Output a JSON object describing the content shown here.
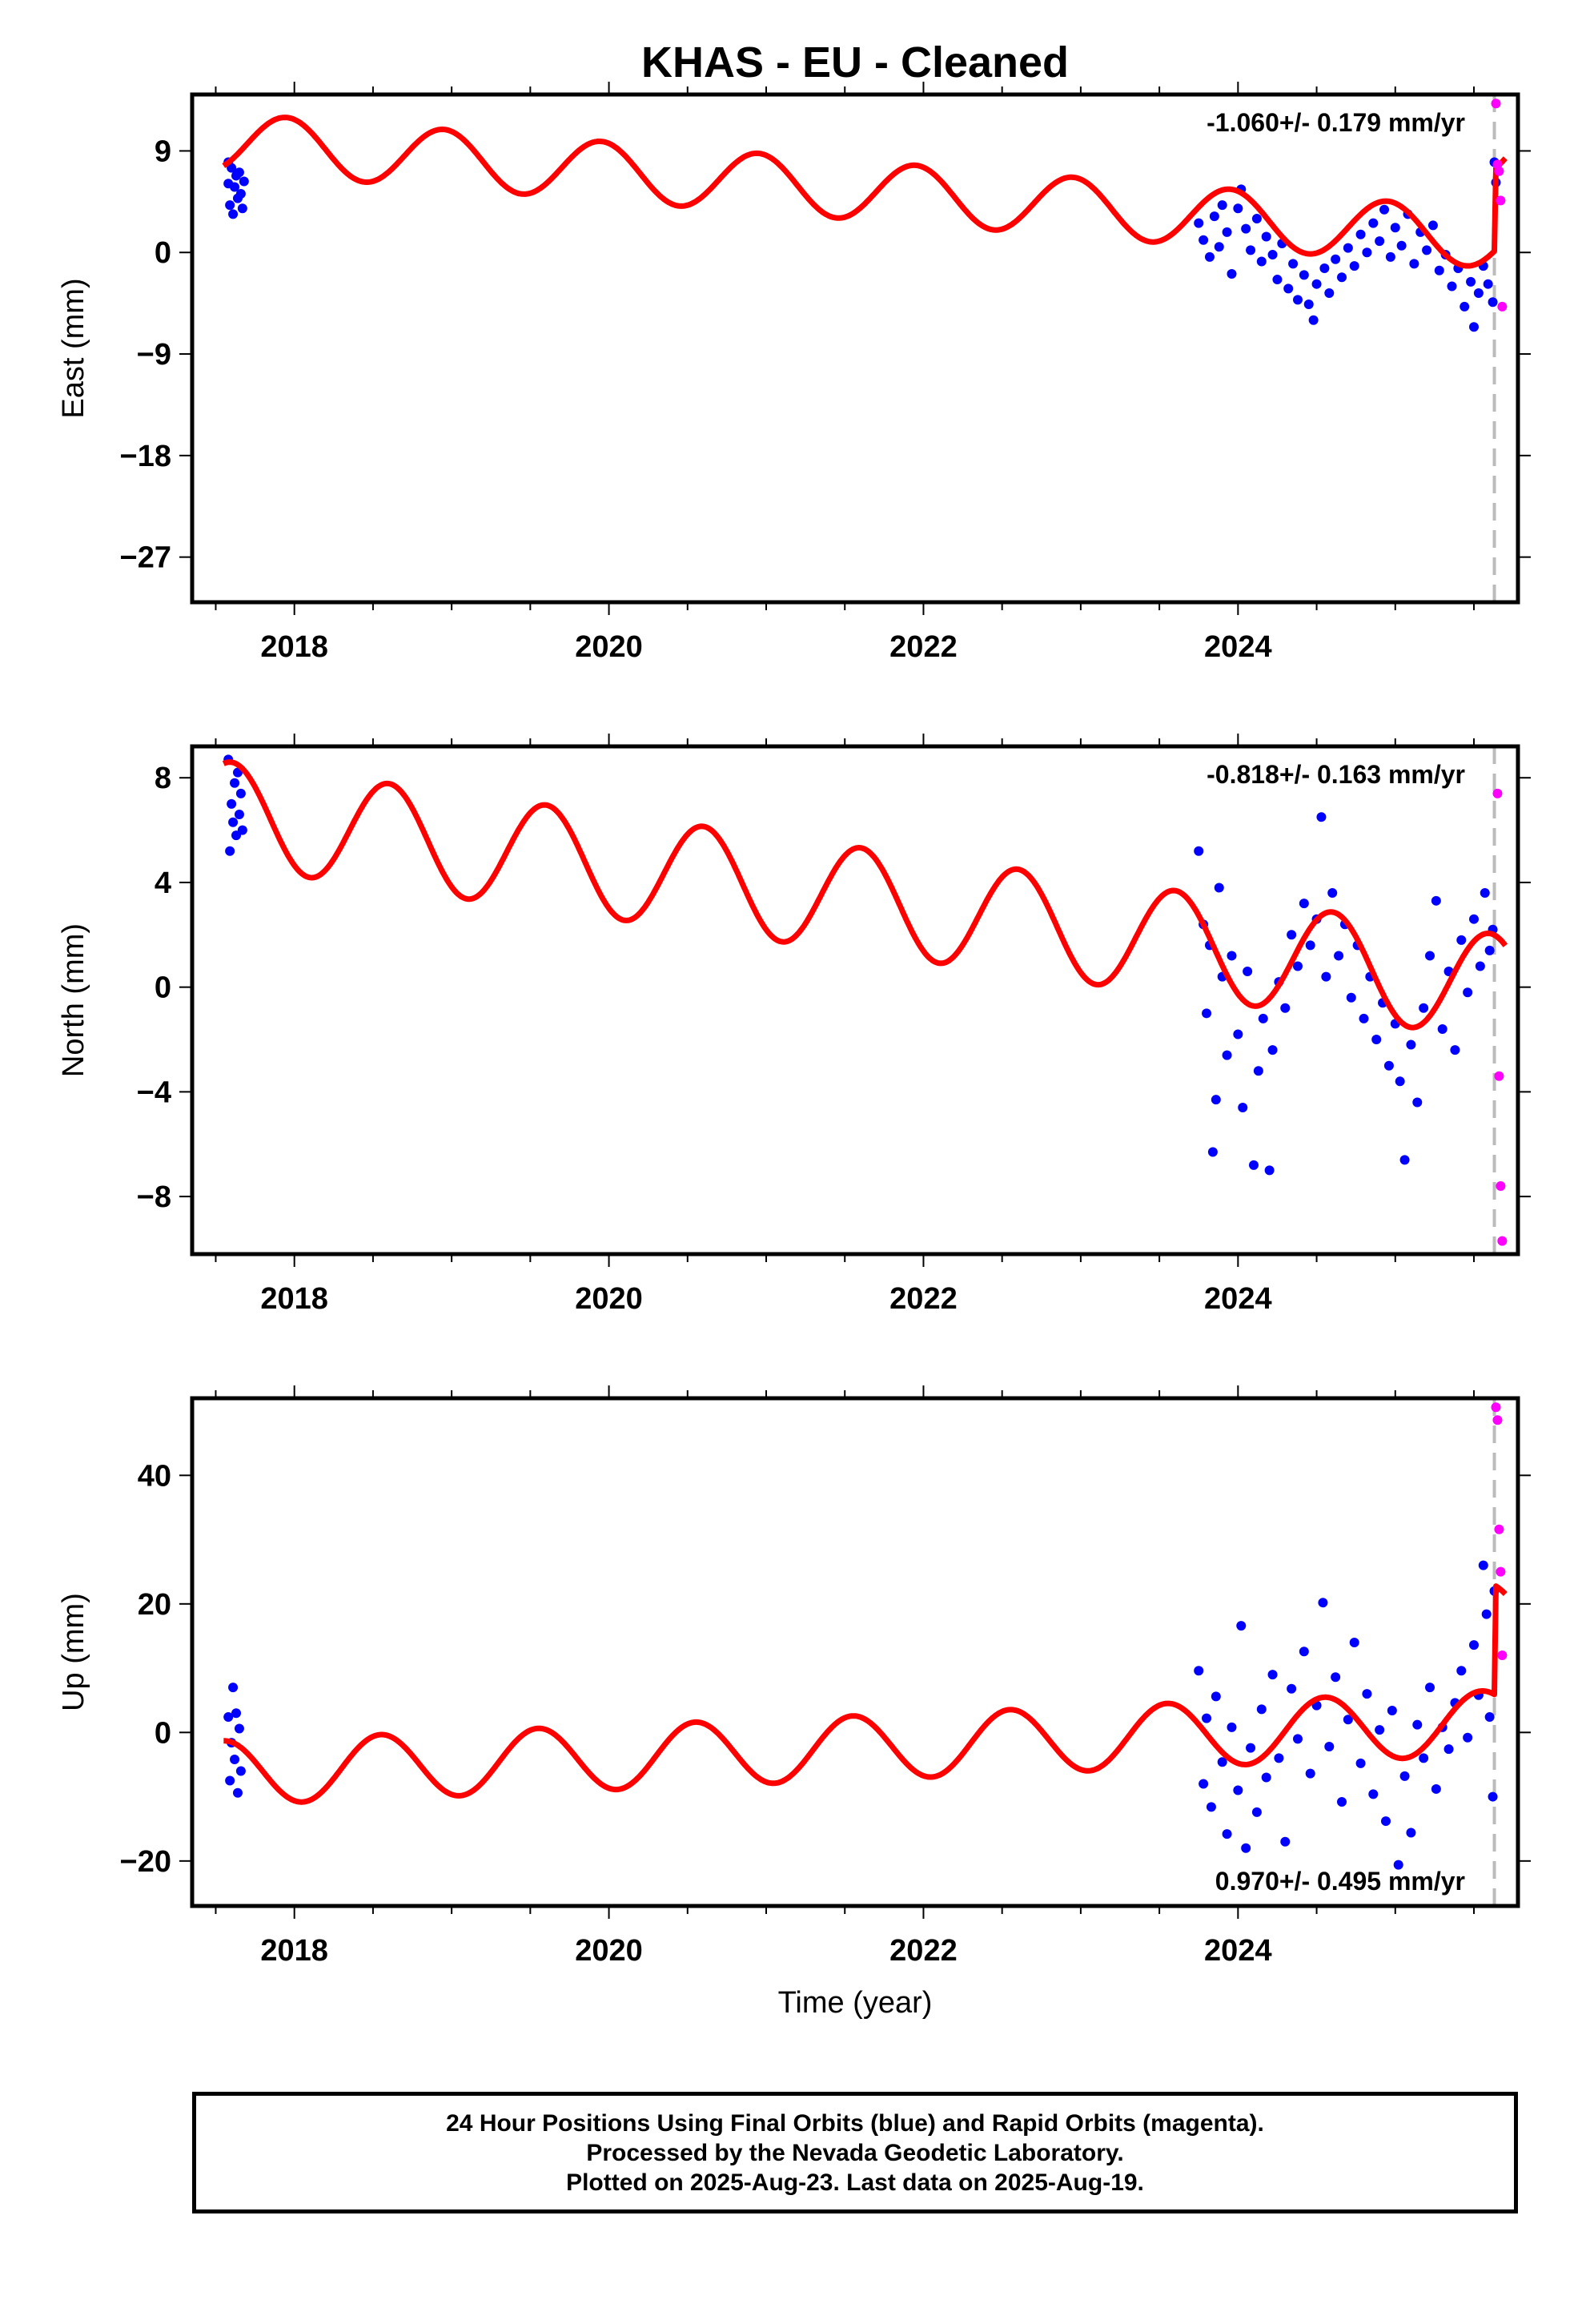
{
  "title": "KHAS  - EU - Cleaned",
  "xlabel": "Time (year)",
  "colors": {
    "final": "#0000ff",
    "rapid": "#ff00ff",
    "model": "#ff0000",
    "last_data": "#bbbbbb"
  },
  "footer": {
    "line1": "24 Hour Positions Using Final Orbits (blue) and Rapid Orbits (magenta).",
    "line2": "Processed by the Nevada Geodetic Laboratory.",
    "line3": "Plotted on 2025-Aug-23. Last data on 2025-Aug-19."
  },
  "chart_data": [
    {
      "type": "scatter",
      "ylabel": "East (mm)",
      "rate_label": "-1.060+/- 0.179 mm/yr",
      "rate_position": "top-right",
      "xlim": [
        2017.35,
        2025.78
      ],
      "ylim": [
        -31,
        14
      ],
      "xticks": [
        2018,
        2020,
        2022,
        2024
      ],
      "yticks": [
        9,
        0,
        -9,
        -18,
        -27
      ],
      "ytick_labels": [
        "9",
        "0",
        "−9",
        "−18",
        "−27"
      ],
      "last_data_year": 2025.63,
      "model": {
        "offset": 10.0,
        "trend": -1.06,
        "amplitude": 2.6,
        "phase_year": 2017.95,
        "annual_cycles": 1.0,
        "step_year": 2025.63,
        "step_mm": 7.2
      },
      "final_points": [
        {
          "x": 2017.58,
          "y": 6.1
        },
        {
          "x": 2017.58,
          "y": 8.0
        },
        {
          "x": 2017.59,
          "y": 4.2
        },
        {
          "x": 2017.6,
          "y": 7.5
        },
        {
          "x": 2017.61,
          "y": 3.4
        },
        {
          "x": 2017.62,
          "y": 5.8
        },
        {
          "x": 2017.63,
          "y": 6.8
        },
        {
          "x": 2017.64,
          "y": 4.8
        },
        {
          "x": 2017.65,
          "y": 7.1
        },
        {
          "x": 2017.66,
          "y": 5.2
        },
        {
          "x": 2017.67,
          "y": 3.9
        },
        {
          "x": 2017.68,
          "y": 6.3
        },
        {
          "x": 2023.75,
          "y": 2.6
        },
        {
          "x": 2023.78,
          "y": 1.1
        },
        {
          "x": 2023.82,
          "y": -0.4
        },
        {
          "x": 2023.85,
          "y": 3.2
        },
        {
          "x": 2023.88,
          "y": 0.5
        },
        {
          "x": 2023.9,
          "y": 4.2
        },
        {
          "x": 2023.93,
          "y": 1.8
        },
        {
          "x": 2023.96,
          "y": -1.9
        },
        {
          "x": 2024.0,
          "y": 3.9
        },
        {
          "x": 2024.02,
          "y": 5.6
        },
        {
          "x": 2024.05,
          "y": 2.1
        },
        {
          "x": 2024.08,
          "y": 0.2
        },
        {
          "x": 2024.12,
          "y": 3.0
        },
        {
          "x": 2024.15,
          "y": -0.8
        },
        {
          "x": 2024.18,
          "y": 1.4
        },
        {
          "x": 2024.22,
          "y": -0.2
        },
        {
          "x": 2024.25,
          "y": -2.4
        },
        {
          "x": 2024.28,
          "y": 0.8
        },
        {
          "x": 2024.32,
          "y": -3.2
        },
        {
          "x": 2024.35,
          "y": -1.0
        },
        {
          "x": 2024.38,
          "y": -4.2
        },
        {
          "x": 2024.42,
          "y": -2.0
        },
        {
          "x": 2024.45,
          "y": -4.6
        },
        {
          "x": 2024.48,
          "y": -6.0
        },
        {
          "x": 2024.5,
          "y": -2.8
        },
        {
          "x": 2024.55,
          "y": -1.4
        },
        {
          "x": 2024.58,
          "y": -3.6
        },
        {
          "x": 2024.62,
          "y": -0.6
        },
        {
          "x": 2024.66,
          "y": -2.2
        },
        {
          "x": 2024.7,
          "y": 0.4
        },
        {
          "x": 2024.74,
          "y": -1.2
        },
        {
          "x": 2024.78,
          "y": 1.6
        },
        {
          "x": 2024.82,
          "y": 0.0
        },
        {
          "x": 2024.86,
          "y": 2.6
        },
        {
          "x": 2024.9,
          "y": 1.0
        },
        {
          "x": 2024.93,
          "y": 3.8
        },
        {
          "x": 2024.97,
          "y": -0.4
        },
        {
          "x": 2025.0,
          "y": 2.2
        },
        {
          "x": 2025.04,
          "y": 0.6
        },
        {
          "x": 2025.08,
          "y": 3.4
        },
        {
          "x": 2025.12,
          "y": -1.0
        },
        {
          "x": 2025.16,
          "y": 1.8
        },
        {
          "x": 2025.2,
          "y": 0.2
        },
        {
          "x": 2025.24,
          "y": 2.4
        },
        {
          "x": 2025.28,
          "y": -1.6
        },
        {
          "x": 2025.32,
          "y": -0.2
        },
        {
          "x": 2025.36,
          "y": -3.0
        },
        {
          "x": 2025.4,
          "y": -1.4
        },
        {
          "x": 2025.44,
          "y": -4.8
        },
        {
          "x": 2025.48,
          "y": -2.6
        },
        {
          "x": 2025.5,
          "y": -6.6
        },
        {
          "x": 2025.53,
          "y": -3.6
        },
        {
          "x": 2025.56,
          "y": -1.2
        },
        {
          "x": 2025.59,
          "y": -2.8
        },
        {
          "x": 2025.62,
          "y": -4.4
        },
        {
          "x": 2025.63,
          "y": 8.0
        },
        {
          "x": 2025.64,
          "y": 6.2
        }
      ],
      "rapid_points": [
        {
          "x": 2025.64,
          "y": 13.2
        },
        {
          "x": 2025.65,
          "y": 7.8
        },
        {
          "x": 2025.66,
          "y": 7.2
        },
        {
          "x": 2025.67,
          "y": 4.6
        },
        {
          "x": 2025.68,
          "y": -4.8
        }
      ]
    },
    {
      "type": "scatter",
      "ylabel": "North (mm)",
      "rate_label": "-0.818+/- 0.163 mm/yr",
      "rate_position": "top-right",
      "xlim": [
        2017.35,
        2025.78
      ],
      "ylim": [
        -10.2,
        9.2
      ],
      "xticks": [
        2018,
        2020,
        2022,
        2024
      ],
      "yticks": [
        8,
        4,
        0,
        -4,
        -8
      ],
      "ytick_labels": [
        "8",
        "4",
        "0",
        "−4",
        "−8"
      ],
      "last_data_year": 2025.63,
      "model": {
        "offset": 6.8,
        "trend": -0.818,
        "amplitude": 2.0,
        "phase_year": 2017.6,
        "annual_cycles": 1.0,
        "step_year": 2025.63,
        "step_mm": 0.0
      },
      "final_points": [
        {
          "x": 2017.58,
          "y": 8.7
        },
        {
          "x": 2017.59,
          "y": 5.2
        },
        {
          "x": 2017.6,
          "y": 7.0
        },
        {
          "x": 2017.61,
          "y": 6.3
        },
        {
          "x": 2017.62,
          "y": 7.8
        },
        {
          "x": 2017.63,
          "y": 5.8
        },
        {
          "x": 2017.64,
          "y": 8.2
        },
        {
          "x": 2017.65,
          "y": 6.6
        },
        {
          "x": 2017.66,
          "y": 7.4
        },
        {
          "x": 2017.67,
          "y": 6.0
        },
        {
          "x": 2023.75,
          "y": 5.2
        },
        {
          "x": 2023.78,
          "y": 2.4
        },
        {
          "x": 2023.8,
          "y": -1.0
        },
        {
          "x": 2023.82,
          "y": 1.6
        },
        {
          "x": 2023.84,
          "y": -6.3
        },
        {
          "x": 2023.86,
          "y": -4.3
        },
        {
          "x": 2023.88,
          "y": 3.8
        },
        {
          "x": 2023.9,
          "y": 0.4
        },
        {
          "x": 2023.93,
          "y": -2.6
        },
        {
          "x": 2023.96,
          "y": 1.2
        },
        {
          "x": 2024.0,
          "y": -1.8
        },
        {
          "x": 2024.03,
          "y": -4.6
        },
        {
          "x": 2024.06,
          "y": 0.6
        },
        {
          "x": 2024.1,
          "y": -6.8
        },
        {
          "x": 2024.13,
          "y": -3.2
        },
        {
          "x": 2024.16,
          "y": -1.2
        },
        {
          "x": 2024.2,
          "y": -7.0
        },
        {
          "x": 2024.22,
          "y": -2.4
        },
        {
          "x": 2024.26,
          "y": 0.2
        },
        {
          "x": 2024.3,
          "y": -0.8
        },
        {
          "x": 2024.34,
          "y": 2.0
        },
        {
          "x": 2024.38,
          "y": 0.8
        },
        {
          "x": 2024.42,
          "y": 3.2
        },
        {
          "x": 2024.46,
          "y": 1.6
        },
        {
          "x": 2024.5,
          "y": 2.6
        },
        {
          "x": 2024.53,
          "y": 6.5
        },
        {
          "x": 2024.56,
          "y": 0.4
        },
        {
          "x": 2024.6,
          "y": 3.6
        },
        {
          "x": 2024.64,
          "y": 1.2
        },
        {
          "x": 2024.68,
          "y": 2.4
        },
        {
          "x": 2024.72,
          "y": -0.4
        },
        {
          "x": 2024.76,
          "y": 1.6
        },
        {
          "x": 2024.8,
          "y": -1.2
        },
        {
          "x": 2024.84,
          "y": 0.4
        },
        {
          "x": 2024.88,
          "y": -2.0
        },
        {
          "x": 2024.92,
          "y": -0.6
        },
        {
          "x": 2024.96,
          "y": -3.0
        },
        {
          "x": 2025.0,
          "y": -1.4
        },
        {
          "x": 2025.03,
          "y": -3.6
        },
        {
          "x": 2025.06,
          "y": -6.6
        },
        {
          "x": 2025.1,
          "y": -2.2
        },
        {
          "x": 2025.14,
          "y": -4.4
        },
        {
          "x": 2025.18,
          "y": -0.8
        },
        {
          "x": 2025.22,
          "y": 1.2
        },
        {
          "x": 2025.26,
          "y": 3.3
        },
        {
          "x": 2025.3,
          "y": -1.6
        },
        {
          "x": 2025.34,
          "y": 0.6
        },
        {
          "x": 2025.38,
          "y": -2.4
        },
        {
          "x": 2025.42,
          "y": 1.8
        },
        {
          "x": 2025.46,
          "y": -0.2
        },
        {
          "x": 2025.5,
          "y": 2.6
        },
        {
          "x": 2025.54,
          "y": 0.8
        },
        {
          "x": 2025.57,
          "y": 3.6
        },
        {
          "x": 2025.6,
          "y": 1.4
        },
        {
          "x": 2025.62,
          "y": 2.2
        }
      ],
      "rapid_points": [
        {
          "x": 2025.65,
          "y": 7.4
        },
        {
          "x": 2025.66,
          "y": -3.4
        },
        {
          "x": 2025.67,
          "y": -7.6
        },
        {
          "x": 2025.68,
          "y": -9.7
        }
      ]
    },
    {
      "type": "scatter",
      "ylabel": "Up (mm)",
      "rate_label": "0.970+/- 0.495 mm/yr",
      "rate_position": "bottom-right",
      "xlim": [
        2017.35,
        2025.78
      ],
      "ylim": [
        -27,
        52
      ],
      "xticks": [
        2018,
        2020,
        2022,
        2024
      ],
      "yticks": [
        40,
        20,
        0,
        -20
      ],
      "ytick_labels": [
        "40",
        "20",
        "0",
        "−20"
      ],
      "last_data_year": 2025.63,
      "model": {
        "offset": -6.5,
        "trend": 0.97,
        "amplitude": 5.0,
        "phase_year": 2017.55,
        "annual_cycles": 1.0,
        "step_year": 2025.63,
        "step_mm": 17.0
      },
      "final_points": [
        {
          "x": 2017.58,
          "y": 2.4
        },
        {
          "x": 2017.59,
          "y": -7.5
        },
        {
          "x": 2017.6,
          "y": -1.6
        },
        {
          "x": 2017.61,
          "y": 7.0
        },
        {
          "x": 2017.62,
          "y": -4.2
        },
        {
          "x": 2017.63,
          "y": 3.0
        },
        {
          "x": 2017.64,
          "y": -9.4
        },
        {
          "x": 2017.65,
          "y": 0.6
        },
        {
          "x": 2017.66,
          "y": -6.0
        },
        {
          "x": 2023.75,
          "y": 9.6
        },
        {
          "x": 2023.78,
          "y": -8.0
        },
        {
          "x": 2023.8,
          "y": 2.2
        },
        {
          "x": 2023.83,
          "y": -11.6
        },
        {
          "x": 2023.86,
          "y": 5.6
        },
        {
          "x": 2023.9,
          "y": -4.6
        },
        {
          "x": 2023.93,
          "y": -15.8
        },
        {
          "x": 2023.96,
          "y": 0.8
        },
        {
          "x": 2024.0,
          "y": -9.0
        },
        {
          "x": 2024.02,
          "y": 16.6
        },
        {
          "x": 2024.05,
          "y": -18.0
        },
        {
          "x": 2024.08,
          "y": -2.4
        },
        {
          "x": 2024.12,
          "y": -12.4
        },
        {
          "x": 2024.15,
          "y": 3.6
        },
        {
          "x": 2024.18,
          "y": -7.0
        },
        {
          "x": 2024.22,
          "y": 9.0
        },
        {
          "x": 2024.26,
          "y": -4.0
        },
        {
          "x": 2024.3,
          "y": -17.0
        },
        {
          "x": 2024.34,
          "y": 6.8
        },
        {
          "x": 2024.38,
          "y": -1.0
        },
        {
          "x": 2024.42,
          "y": 12.6
        },
        {
          "x": 2024.46,
          "y": -6.4
        },
        {
          "x": 2024.5,
          "y": 4.2
        },
        {
          "x": 2024.54,
          "y": 20.2
        },
        {
          "x": 2024.58,
          "y": -2.2
        },
        {
          "x": 2024.62,
          "y": 8.6
        },
        {
          "x": 2024.66,
          "y": -10.8
        },
        {
          "x": 2024.7,
          "y": 2.0
        },
        {
          "x": 2024.74,
          "y": 14.0
        },
        {
          "x": 2024.78,
          "y": -4.8
        },
        {
          "x": 2024.82,
          "y": 6.0
        },
        {
          "x": 2024.86,
          "y": -9.6
        },
        {
          "x": 2024.9,
          "y": 0.4
        },
        {
          "x": 2024.94,
          "y": -13.8
        },
        {
          "x": 2024.98,
          "y": 3.4
        },
        {
          "x": 2025.02,
          "y": -20.6
        },
        {
          "x": 2025.06,
          "y": -6.8
        },
        {
          "x": 2025.1,
          "y": -15.6
        },
        {
          "x": 2025.14,
          "y": 1.2
        },
        {
          "x": 2025.18,
          "y": -4.0
        },
        {
          "x": 2025.22,
          "y": 7.0
        },
        {
          "x": 2025.26,
          "y": -8.8
        },
        {
          "x": 2025.3,
          "y": 0.8
        },
        {
          "x": 2025.34,
          "y": -2.6
        },
        {
          "x": 2025.38,
          "y": 4.6
        },
        {
          "x": 2025.42,
          "y": 9.6
        },
        {
          "x": 2025.46,
          "y": -0.8
        },
        {
          "x": 2025.5,
          "y": 13.6
        },
        {
          "x": 2025.53,
          "y": 5.8
        },
        {
          "x": 2025.56,
          "y": 26.0
        },
        {
          "x": 2025.58,
          "y": 18.4
        },
        {
          "x": 2025.6,
          "y": 2.4
        },
        {
          "x": 2025.62,
          "y": -10.0
        },
        {
          "x": 2025.63,
          "y": 22.0
        }
      ],
      "rapid_points": [
        {
          "x": 2025.64,
          "y": 50.6
        },
        {
          "x": 2025.65,
          "y": 48.6
        },
        {
          "x": 2025.66,
          "y": 31.6
        },
        {
          "x": 2025.67,
          "y": 25.0
        },
        {
          "x": 2025.68,
          "y": 12.0
        }
      ]
    }
  ]
}
